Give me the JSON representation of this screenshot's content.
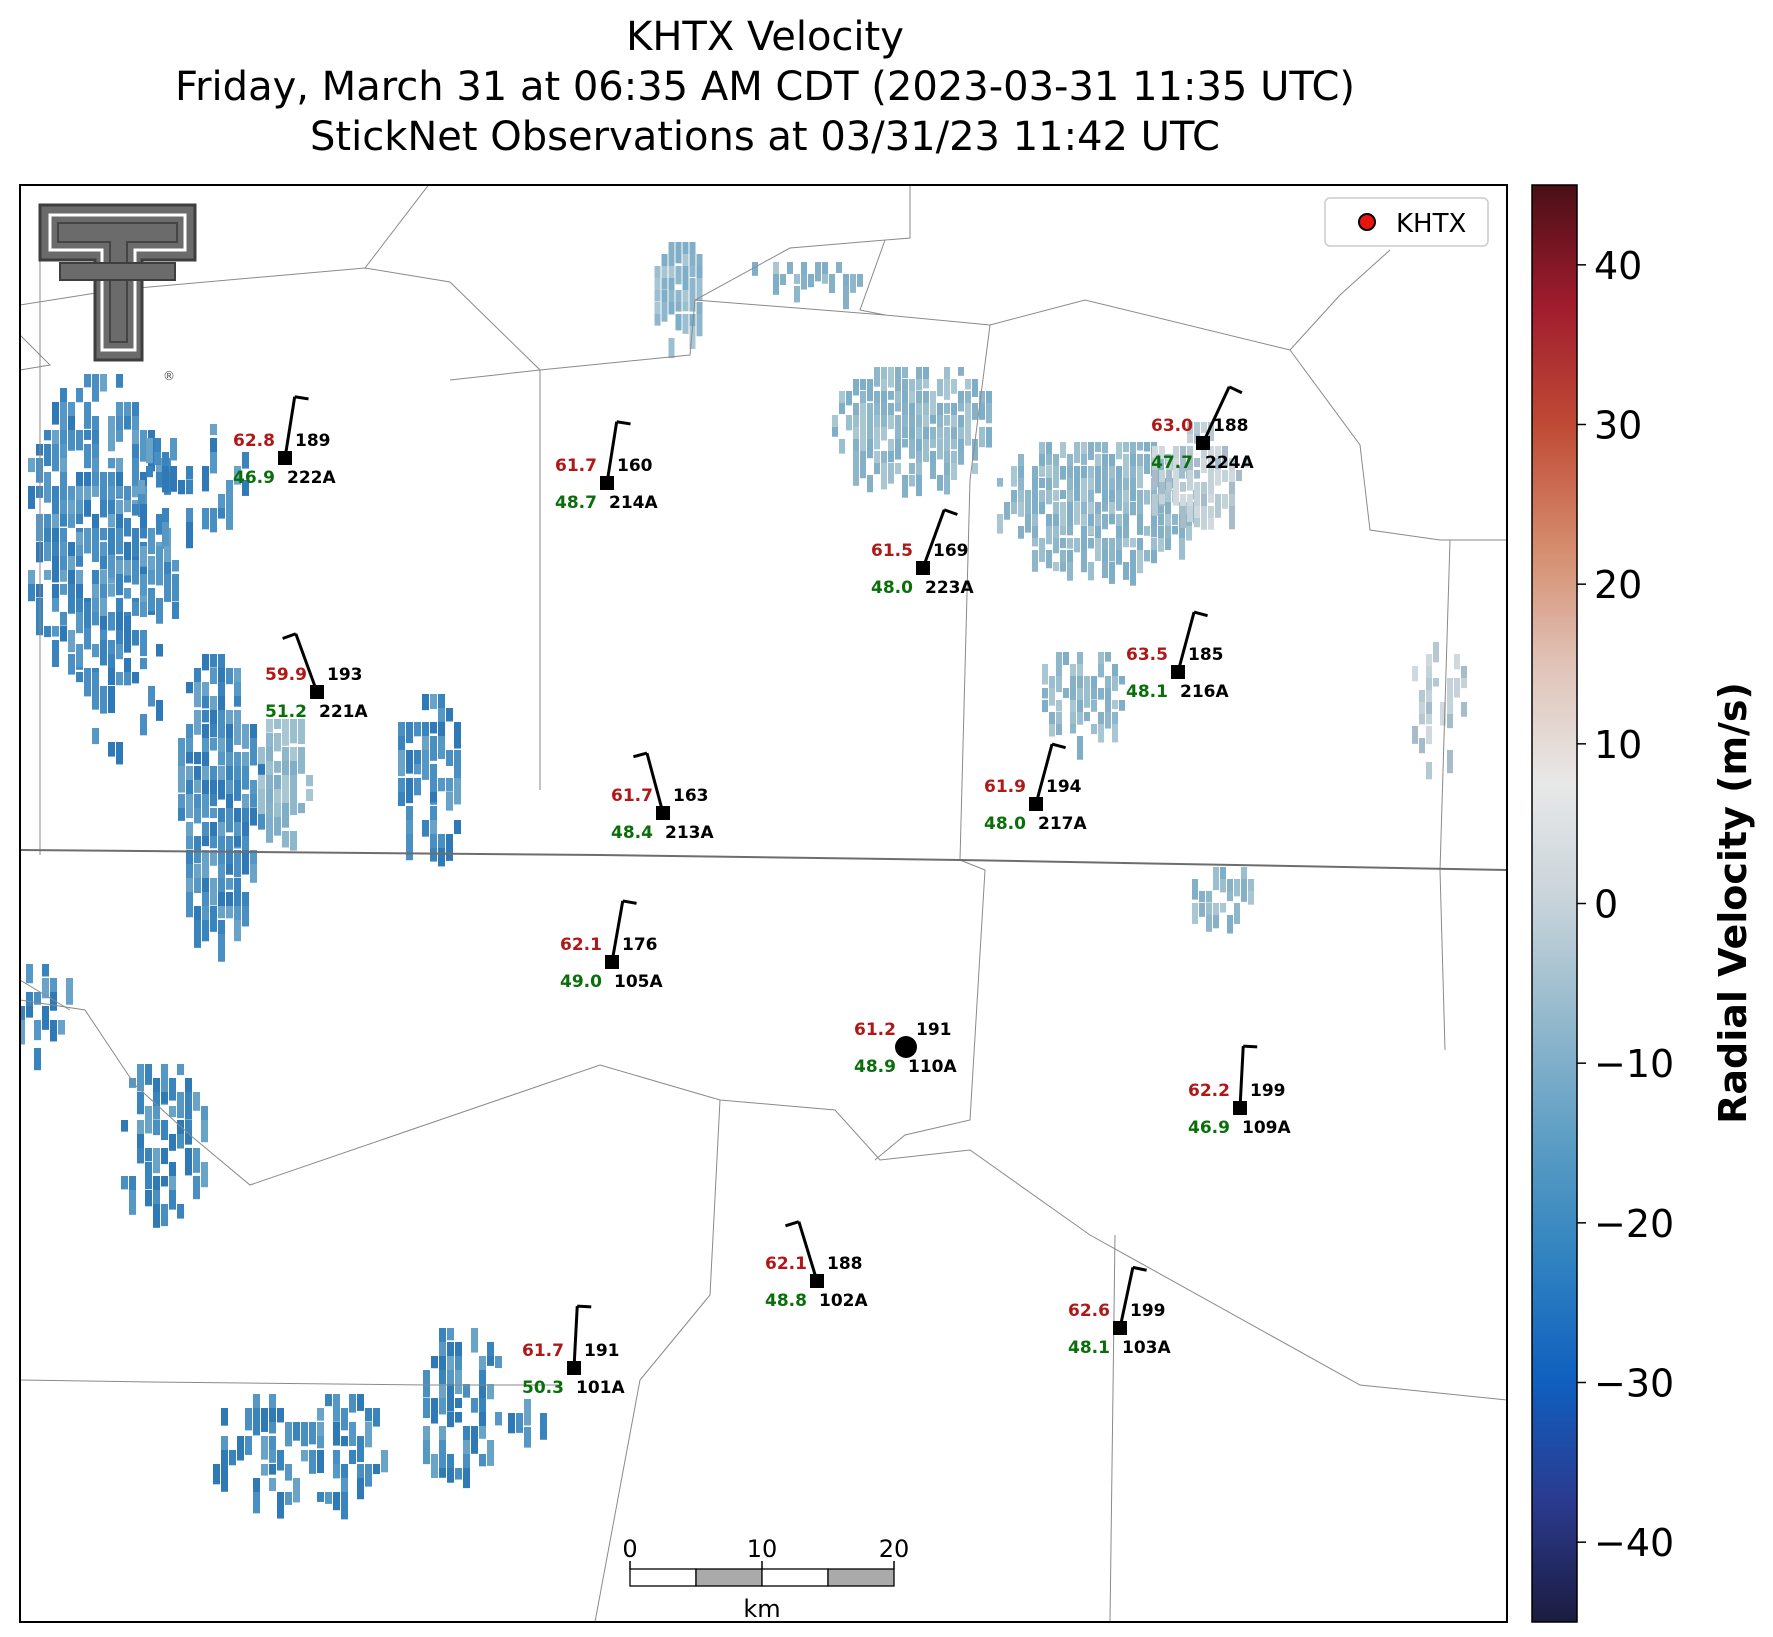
{
  "title": {
    "line1": "KHTX Velocity",
    "line2": "Friday, March 31 at 06:35 AM CDT (2023-03-31 11:35 UTC)",
    "line3": "StickNet Observations at 03/31/23 11:42 UTC"
  },
  "legend": {
    "label": "KHTX",
    "marker_color": "#e8140f"
  },
  "logo": {
    "name": "Texas Tech double-T logo",
    "mark": "®"
  },
  "colorbar": {
    "label": "Radial Velocity (m/s)",
    "range": [
      -45,
      45
    ],
    "ticks": [
      "40",
      "30",
      "20",
      "10",
      "0",
      "−10",
      "−20",
      "−30",
      "−40"
    ],
    "tick_values": [
      40,
      30,
      20,
      10,
      0,
      -10,
      -20,
      -30,
      -40
    ],
    "colors": [
      "#1b1c3f",
      "#2b3a8f",
      "#0f5fbf",
      "#2f82c0",
      "#5b9dc4",
      "#92b8cc",
      "#c7d3da",
      "#e8e8e8",
      "#e0c3b8",
      "#d58a6b",
      "#bf4a35",
      "#a01c2e",
      "#4a0f16"
    ]
  },
  "scalebar": {
    "ticks": [
      "0",
      "10",
      "20"
    ],
    "unit": "km"
  },
  "stations": [
    {
      "id": "222A",
      "temp": "62.8",
      "dew": "46.9",
      "dir": "189",
      "wdir": 189
    },
    {
      "id": "214A",
      "temp": "61.7",
      "dew": "48.7",
      "dir": "160",
      "wdir": 189
    },
    {
      "id": "223A",
      "temp": "61.5",
      "dew": "48.0",
      "dir": "169",
      "wdir": 200
    },
    {
      "id": "224A",
      "temp": "63.0",
      "dew": "47.7",
      "dir": "188",
      "wdir": 205
    },
    {
      "id": "221A",
      "temp": "59.9",
      "dew": "51.2",
      "dir": "193",
      "wdir": 160
    },
    {
      "id": "216A",
      "temp": "63.5",
      "dew": "48.1",
      "dir": "185",
      "wdir": 195
    },
    {
      "id": "213A",
      "temp": "61.7",
      "dew": "48.4",
      "dir": "163",
      "wdir": 165
    },
    {
      "id": "217A",
      "temp": "61.9",
      "dew": "48.0",
      "dir": "194",
      "wdir": 195
    },
    {
      "id": "105A",
      "temp": "62.1",
      "dew": "49.0",
      "dir": "176",
      "wdir": 190
    },
    {
      "id": "110A",
      "temp": "61.2",
      "dew": "48.9",
      "dir": "191",
      "wdir": null
    },
    {
      "id": "109A",
      "temp": "62.2",
      "dew": "46.9",
      "dir": "199",
      "wdir": 183
    },
    {
      "id": "102A",
      "temp": "62.1",
      "dew": "48.8",
      "dir": "188",
      "wdir": 163
    },
    {
      "id": "103A",
      "temp": "62.6",
      "dew": "48.1",
      "dir": "199",
      "wdir": 192
    },
    {
      "id": "101A",
      "temp": "61.7",
      "dew": "50.3",
      "dir": "191",
      "wdir": 183
    }
  ]
}
